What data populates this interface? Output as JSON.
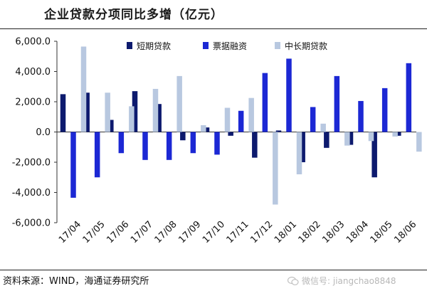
{
  "title": "企业贷款分项同比多增（亿元）",
  "source": "资料来源：WIND，海通证券研究所",
  "watermark": "微信号: jiangchao8848",
  "colors": {
    "短期贷款": "#0d1a6e",
    "票据融资": "#1c28d4",
    "中长期贷款": "#b8c8e0"
  },
  "chart_data": {
    "type": "bar",
    "title": "企业贷款分项同比多增（亿元）",
    "xlabel": "",
    "ylabel": "",
    "categories": [
      "17/04",
      "17/05",
      "17/06",
      "17/07",
      "17/08",
      "17/09",
      "17/10",
      "17/11",
      "17/12",
      "18/01",
      "18/02",
      "18/03",
      "18/04",
      "18/05",
      "18/06"
    ],
    "ylim": [
      -6000,
      6000
    ],
    "yticks": [
      -6000,
      -4000,
      -2000,
      0,
      2000,
      4000,
      6000
    ],
    "ytick_labels": [
      "-6,000.0",
      "-4,000.0",
      "-2,000.0",
      "0.0",
      "2,000.0",
      "4,000.0",
      "6,000.0"
    ],
    "legend_position": "top",
    "grid": false,
    "series": [
      {
        "name": "短期贷款",
        "values": [
          2500,
          2600,
          800,
          2700,
          1850,
          -550,
          300,
          -250,
          -1700,
          100,
          -2000,
          -1050,
          -850,
          -3000,
          -250
        ]
      },
      {
        "name": "票据融资",
        "values": [
          -4350,
          -3000,
          -1400,
          -1850,
          -1850,
          -1400,
          -1500,
          1400,
          3900,
          4850,
          1650,
          3700,
          2050,
          2900,
          4550
        ]
      },
      {
        "name": "中长期贷款",
        "values": [
          5650,
          2600,
          1700,
          2850,
          3700,
          450,
          1600,
          2250,
          -4800,
          -2800,
          550,
          -900,
          -600,
          -300,
          -1300
        ]
      }
    ]
  }
}
